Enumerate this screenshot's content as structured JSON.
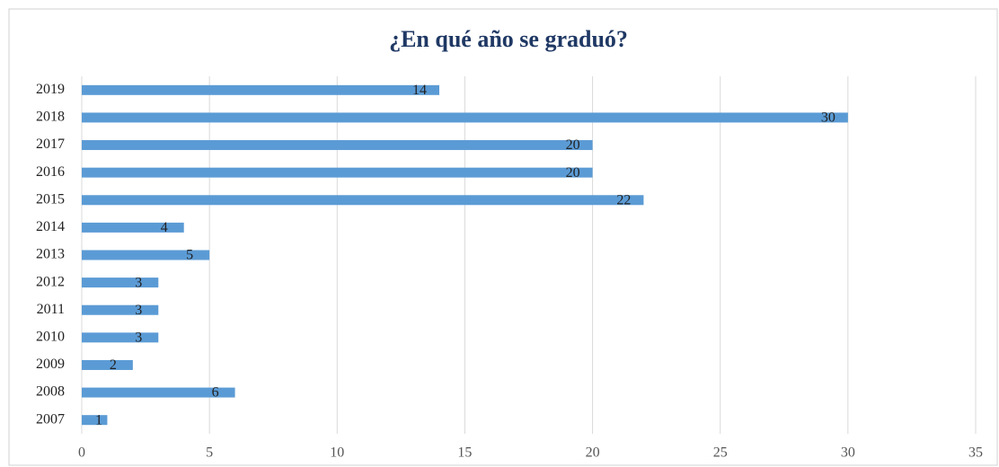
{
  "chart_data": {
    "type": "bar",
    "orientation": "horizontal",
    "title": "¿En qué año se graduó?",
    "categories": [
      "2007",
      "2008",
      "2009",
      "2010",
      "2011",
      "2012",
      "2013",
      "2014",
      "2015",
      "2016",
      "2017",
      "2018",
      "2019"
    ],
    "values": [
      1,
      6,
      2,
      3,
      3,
      3,
      5,
      4,
      22,
      20,
      20,
      30,
      14
    ],
    "color": "#5b9bd5",
    "xlim": [
      0,
      35
    ],
    "xticks": [
      0,
      5,
      10,
      15,
      20,
      25,
      30,
      35
    ],
    "grid": true,
    "data_labels": true
  }
}
